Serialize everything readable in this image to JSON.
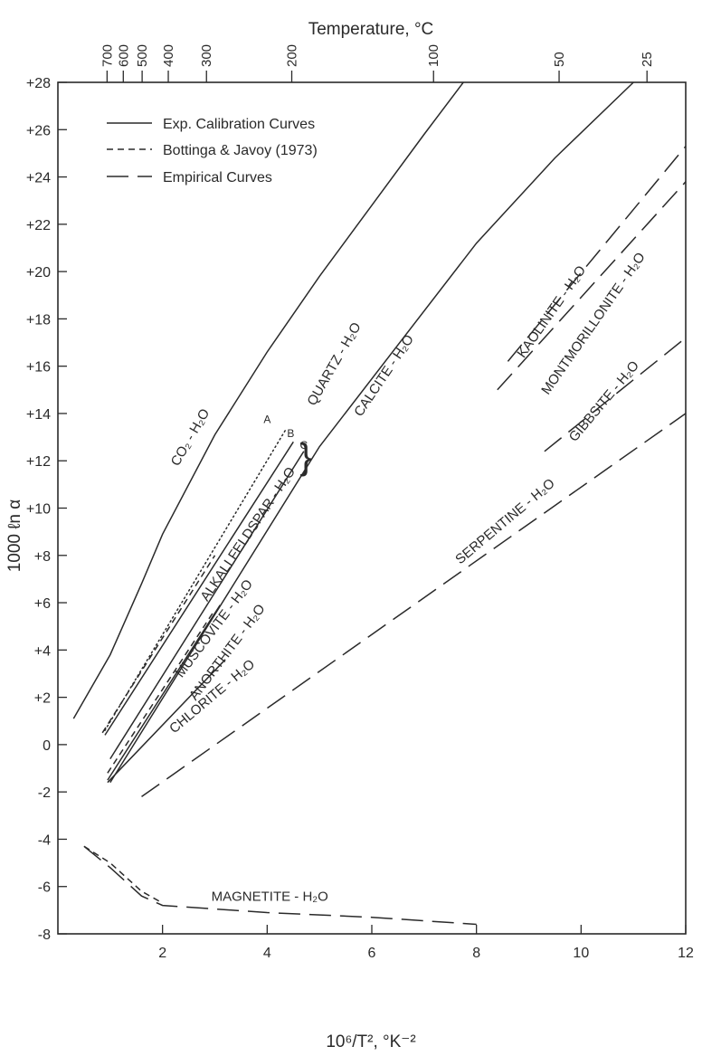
{
  "chart_data": {
    "type": "line",
    "title": "Temperature, °C",
    "xlabel": "10⁶/T², °K⁻²",
    "ylabel": "1000 ℓn α",
    "xlim": [
      0,
      12
    ],
    "ylim": [
      -8,
      28
    ],
    "x_ticks": [
      {
        "v": 2,
        "label": "2"
      },
      {
        "v": 4,
        "label": "4"
      },
      {
        "v": 6,
        "label": "6"
      },
      {
        "v": 8,
        "label": "8"
      },
      {
        "v": 10,
        "label": "10"
      },
      {
        "v": 12,
        "label": "12"
      }
    ],
    "y_ticks": [
      {
        "v": 28,
        "label": "+28"
      },
      {
        "v": 26,
        "label": "+26"
      },
      {
        "v": 24,
        "label": "+24"
      },
      {
        "v": 22,
        "label": "+22"
      },
      {
        "v": 20,
        "label": "+20"
      },
      {
        "v": 18,
        "label": "+18"
      },
      {
        "v": 16,
        "label": "+16"
      },
      {
        "v": 14,
        "label": "+14"
      },
      {
        "v": 12,
        "label": "+12"
      },
      {
        "v": 10,
        "label": "+10"
      },
      {
        "v": 8,
        "label": "+8"
      },
      {
        "v": 6,
        "label": "+6"
      },
      {
        "v": 4,
        "label": "+4"
      },
      {
        "v": 2,
        "label": "+2"
      },
      {
        "v": 0,
        "label": "0"
      },
      {
        "v": -2,
        "label": "-2"
      },
      {
        "v": -4,
        "label": "-4"
      },
      {
        "v": -6,
        "label": "-6"
      },
      {
        "v": -8,
        "label": "-8"
      }
    ],
    "top_ticks": [
      {
        "x": 0.94,
        "label": "700"
      },
      {
        "x": 1.25,
        "label": "600"
      },
      {
        "x": 1.61,
        "label": "500"
      },
      {
        "x": 2.11,
        "label": "400"
      },
      {
        "x": 2.84,
        "label": "300"
      },
      {
        "x": 4.47,
        "label": "200"
      },
      {
        "x": 7.18,
        "label": "100"
      },
      {
        "x": 9.58,
        "label": "50"
      },
      {
        "x": 11.26,
        "label": "25"
      }
    ],
    "legend": {
      "placement": "top-left",
      "entries": [
        {
          "style": "solid",
          "label": "Exp. Calibration Curves"
        },
        {
          "style": "short-dash",
          "label": "Bottinga & Javoy (1973)"
        },
        {
          "style": "long-dash",
          "label": "Empirical Curves"
        }
      ]
    },
    "series": [
      {
        "name": "CO₂ - H₂O",
        "style": "solid",
        "points": [
          [
            0.3,
            1.1
          ],
          [
            1.0,
            3.8
          ],
          [
            1.6,
            6.8
          ],
          [
            2.0,
            8.9
          ],
          [
            3.0,
            13.1
          ],
          [
            4.0,
            16.6
          ],
          [
            5.0,
            19.8
          ],
          [
            6.0,
            22.8
          ],
          [
            7.0,
            25.8
          ],
          [
            7.75,
            28.0
          ]
        ]
      },
      {
        "name": "A",
        "style": "dotted",
        "points": [
          [
            0.9,
            0.6
          ],
          [
            4.35,
            13.3
          ]
        ]
      },
      {
        "name": "B",
        "style": "solid",
        "points": [
          [
            0.9,
            0.4
          ],
          [
            4.5,
            12.8
          ]
        ]
      },
      {
        "name": "C",
        "style": "solid",
        "points": [
          [
            1.0,
            -0.6
          ],
          [
            4.7,
            12.4
          ]
        ]
      },
      {
        "name": "Calcite - H₂O",
        "style": "solid",
        "points": [
          [
            1.0,
            -1.6
          ],
          [
            3.0,
            5.5
          ],
          [
            5.0,
            12.6
          ],
          [
            8.0,
            21.2
          ],
          [
            9.5,
            24.8
          ],
          [
            11.0,
            28.0
          ]
        ]
      },
      {
        "name": "Muscovite - H₂O",
        "style": "solid",
        "points": [
          [
            0.95,
            -1.5
          ],
          [
            3.1,
            5.9
          ]
        ]
      },
      {
        "name": "Anorthite - H₂O",
        "style": "solid",
        "points": [
          [
            0.95,
            -1.6
          ],
          [
            3.2,
            3.6
          ]
        ]
      },
      {
        "name": "Serpentine - H₂O",
        "style": "long-dash",
        "points": [
          [
            1.6,
            -2.2
          ],
          [
            12.0,
            14.0
          ]
        ]
      },
      {
        "name": "Kaolinite - H₂O",
        "style": "long-dash",
        "points": [
          [
            8.6,
            16.2
          ],
          [
            12.0,
            25.3
          ]
        ]
      },
      {
        "name": "Montmorillonite - H₂O",
        "style": "long-dash",
        "points": [
          [
            8.4,
            15.0
          ],
          [
            12.0,
            23.8
          ]
        ]
      },
      {
        "name": "Gibbsite - H₂O",
        "style": "long-dash",
        "points": [
          [
            9.3,
            12.4
          ],
          [
            12.0,
            17.2
          ]
        ]
      },
      {
        "name": "Magnetite - H₂O",
        "style": "long-dash",
        "points": [
          [
            0.5,
            -4.3
          ],
          [
            1.0,
            -5.2
          ],
          [
            1.6,
            -6.4
          ],
          [
            2.0,
            -6.8
          ],
          [
            4.0,
            -7.1
          ],
          [
            6.0,
            -7.3
          ],
          [
            8.0,
            -7.6
          ]
        ]
      }
    ],
    "comparison_curves": [
      {
        "style": "short-dash",
        "points": [
          [
            0.85,
            0.5
          ],
          [
            3.0,
            8.0
          ]
        ]
      },
      {
        "style": "short-dash",
        "points": [
          [
            0.95,
            -1.2
          ],
          [
            3.0,
            5.7
          ]
        ]
      },
      {
        "style": "short-dash",
        "points": [
          [
            0.5,
            -4.3
          ],
          [
            1.0,
            -5.0
          ],
          [
            1.6,
            -6.2
          ],
          [
            2.0,
            -6.7
          ]
        ]
      }
    ],
    "quartz_label": "QUARTZ - H₂O",
    "series_labels": [
      {
        "text": "CO₂ - H₂O",
        "x": 2.6,
        "y": 12.9,
        "rot": -60
      },
      {
        "text": "QUARTZ - H₂O",
        "x": 5.35,
        "y": 16.0,
        "rot": -60
      },
      {
        "text": "ALKALI FELDSPAR - H₂O",
        "x": 3.7,
        "y": 8.8,
        "rot": -56
      },
      {
        "text": "CALCITE - H₂O",
        "x": 6.3,
        "y": 15.5,
        "rot": -56
      },
      {
        "text": "MUSCOVITE - H₂O",
        "x": 3.05,
        "y": 4.8,
        "rot": -53
      },
      {
        "text": "ANORTHITE - H₂O",
        "x": 3.3,
        "y": 3.8,
        "rot": -53
      },
      {
        "text": "CHLORITE - H₂O",
        "x": 3.0,
        "y": 1.9,
        "rot": -40
      },
      {
        "text": "SERPENTINE - H₂O",
        "x": 8.6,
        "y": 9.3,
        "rot": -40
      },
      {
        "text": "KAOLINITE - H₂O",
        "x": 9.5,
        "y": 18.2,
        "rot": -55
      },
      {
        "text": "MONTMORILLONITE - H₂O",
        "x": 10.3,
        "y": 17.7,
        "rot": -55
      },
      {
        "text": "GIBBSITE - H₂O",
        "x": 10.5,
        "y": 14.4,
        "rot": -50
      },
      {
        "text": "MAGNETITE - H₂O",
        "x": 4.05,
        "y": -6.6,
        "rot": 0
      }
    ],
    "point_labels": [
      {
        "text": "A",
        "x": 4.0,
        "y": 13.6
      },
      {
        "text": "B",
        "x": 4.45,
        "y": 13.0
      },
      {
        "text": "C",
        "x": 4.7,
        "y": 12.5
      }
    ]
  }
}
